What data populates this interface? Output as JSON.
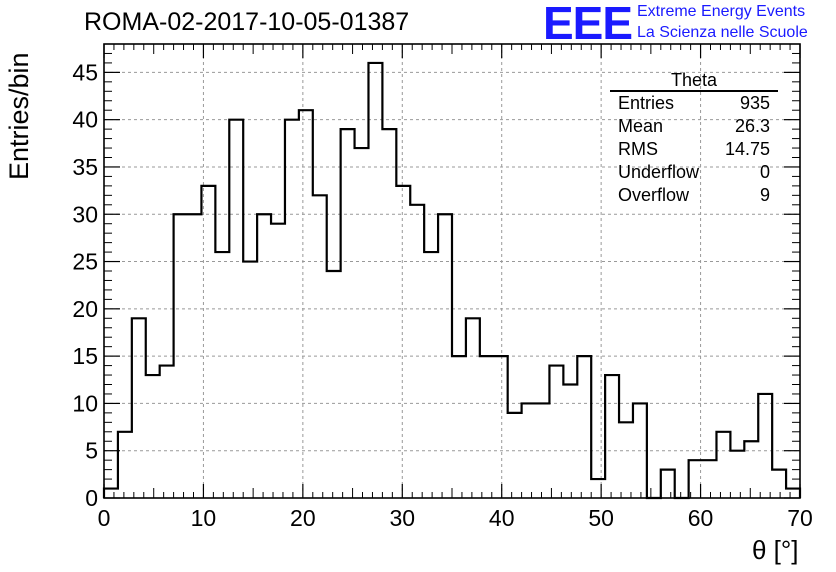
{
  "header": {
    "run_title": "ROMA-02-2017-10-05-01387",
    "logo_text": "EEE",
    "logo_line1": "Extreme Energy Events",
    "logo_line2": "La Scienza nelle Scuole"
  },
  "stats_box": {
    "title": "Theta",
    "rows": [
      {
        "label": "Entries",
        "value": "935"
      },
      {
        "label": "Mean",
        "value": "26.3"
      },
      {
        "label": "RMS",
        "value": "14.75"
      },
      {
        "label": "Underflow",
        "value": "0"
      },
      {
        "label": "Overflow",
        "value": "9"
      }
    ]
  },
  "colors": {
    "logo": "#1a1aff",
    "line": "#000000",
    "grid": "#999999"
  },
  "chart_data": {
    "type": "bar",
    "style": "step histogram",
    "xlabel": "θ [°]",
    "ylabel": "Entries/bin",
    "xlim": [
      0,
      70
    ],
    "ylim": [
      0,
      48
    ],
    "bin_width": 1.4,
    "x_ticks": [
      0,
      10,
      20,
      30,
      40,
      50,
      60,
      70
    ],
    "y_ticks": [
      0,
      5,
      10,
      15,
      20,
      25,
      30,
      35,
      40,
      45
    ],
    "grid": true,
    "values": [
      1,
      7,
      19,
      13,
      14,
      30,
      30,
      33,
      26,
      40,
      25,
      30,
      29,
      40,
      41,
      32,
      24,
      39,
      37,
      46,
      39,
      33,
      31,
      26,
      30,
      15,
      19,
      15,
      15,
      9,
      10,
      10,
      14,
      12,
      15,
      2,
      13,
      8,
      10,
      0,
      3,
      0,
      4,
      4,
      7,
      5,
      6,
      11,
      3,
      1
    ]
  }
}
